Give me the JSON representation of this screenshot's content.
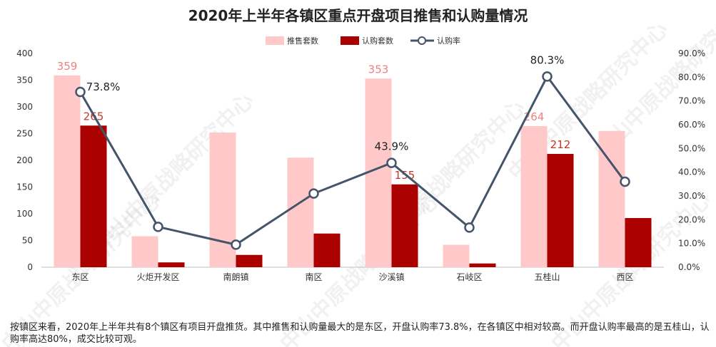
{
  "watermark": "中山中原战略研究中心",
  "footnote": "按镇区来看，2020年上半年共有8个镇区有项目开盘推货。其中推售和认购量最大的是东区，开盘认购率73.8%，在各镇区中相对较高。而开盘认购率最高的是五桂山，认购率高达80%，成交比较可观。",
  "colors": {
    "pushed": "#ffc9c9",
    "subscribed": "#aa0000",
    "rate_line": "#44546a",
    "pushed_label": "#f08080",
    "subscribed_label": "#c0392b",
    "rate_label": "#222222",
    "axis": "#bfbfbf"
  },
  "chart_data": {
    "type": "bar",
    "title": "2020年上半年各镇区重点开盘项目推售和认购量情况",
    "categories": [
      "东区",
      "火炬开发区",
      "南朗镇",
      "南区",
      "沙溪镇",
      "石岐区",
      "五桂山",
      "西区"
    ],
    "series": [
      {
        "name": "推售套数",
        "kind": "bar",
        "axis": "left",
        "values": [
          359,
          58,
          252,
          205,
          353,
          42,
          264,
          255
        ],
        "labels": [
          "359",
          null,
          null,
          null,
          "353",
          null,
          "264",
          null
        ]
      },
      {
        "name": "认购套数",
        "kind": "bar",
        "axis": "left",
        "values": [
          265,
          9,
          23,
          63,
          155,
          7,
          212,
          92
        ],
        "labels": [
          "265",
          null,
          null,
          null,
          "155",
          null,
          "212",
          null
        ]
      },
      {
        "name": "认购率",
        "kind": "line",
        "axis": "right",
        "values": [
          73.8,
          17,
          9.5,
          31,
          43.9,
          16.7,
          80.3,
          36
        ],
        "labels": [
          "73.8%",
          null,
          null,
          null,
          "43.9%",
          null,
          "80.3%",
          null
        ]
      }
    ],
    "y_left": {
      "min": 0,
      "max": 400,
      "ticks": [
        "0",
        "50",
        "100",
        "150",
        "200",
        "250",
        "300",
        "350",
        "400"
      ]
    },
    "y_right": {
      "min": 0,
      "max": 90,
      "ticks": [
        "0.0%",
        "10.0%",
        "20.0%",
        "30.0%",
        "40.0%",
        "50.0%",
        "60.0%",
        "70.0%",
        "80.0%",
        "90.0%"
      ]
    },
    "legend_position": "top-center",
    "grid": false
  }
}
